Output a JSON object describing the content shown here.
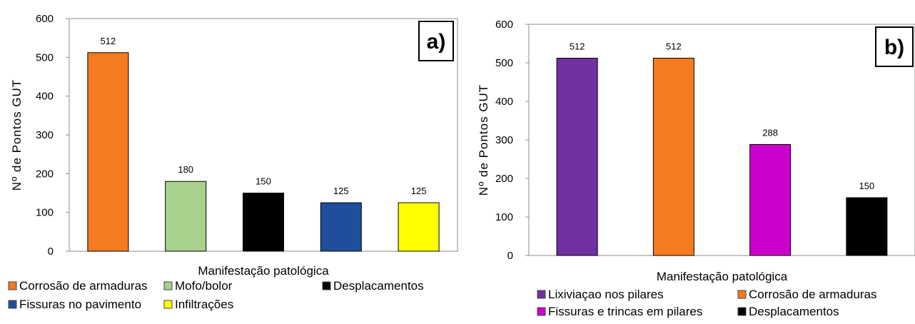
{
  "chart_data": [
    {
      "type": "bar",
      "panel_label": "a)",
      "ylabel": "Nº de Pontos GUT",
      "xlabel": "Manifestação patológica",
      "ylim": [
        0,
        600
      ],
      "yticks": [
        0,
        100,
        200,
        300,
        400,
        500,
        600
      ],
      "grid": false,
      "categories": [
        "Corrosão de armaduras",
        "Mofo/bolor",
        "Desplacamentos",
        "Fissuras no pavimento",
        "Infiltrações"
      ],
      "values": [
        512,
        180,
        150,
        125,
        125
      ],
      "colors": [
        "#f47b20",
        "#a9d18e",
        "#000000",
        "#1f4e9c",
        "#ffff00"
      ],
      "legend": [
        "Corrosão de armaduras",
        "Mofo/bolor",
        "Desplacamentos",
        "Fissuras no pavimento",
        "Infiltrações"
      ],
      "legend_position": "bottom"
    },
    {
      "type": "bar",
      "panel_label": "b)",
      "ylabel": "Nº de Pontos GUT",
      "xlabel": "Manifestação patológica",
      "ylim": [
        0,
        600
      ],
      "yticks": [
        0,
        100,
        200,
        300,
        400,
        500,
        600
      ],
      "grid": false,
      "categories": [
        "Lixiviaçao nos pilares",
        "Corrosão de armaduras",
        "Fissuras e trincas em pilares",
        "Desplacamentos"
      ],
      "values": [
        512,
        512,
        288,
        150
      ],
      "colors": [
        "#7030a0",
        "#f47b20",
        "#cc00cc",
        "#000000"
      ],
      "legend": [
        "Lixiviaçao nos pilares",
        "Corrosão de armaduras",
        "Fissuras e trincas em pilares",
        "Desplacamentos"
      ],
      "legend_position": "bottom"
    }
  ]
}
